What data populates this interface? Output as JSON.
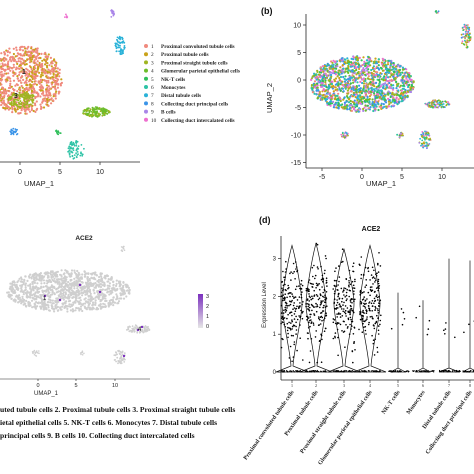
{
  "colors": {
    "cluster": [
      "#f08a7e",
      "#c9a21a",
      "#9fb521",
      "#6cbc2a",
      "#2fbf5a",
      "#2ec3a6",
      "#2ab2d8",
      "#3b94e8",
      "#a985e8",
      "#ee6fcf"
    ],
    "feature_low": "#cfcfcf",
    "feature_high": "#7b2fbe",
    "violin_outline": "#111111",
    "points": "#000000"
  },
  "chart_data": [
    {
      "panel": "a",
      "type": "scatter",
      "title": "",
      "xlabel": "UMAP_1",
      "ylabel": "",
      "x_ticks": [
        "0",
        "5",
        "10"
      ],
      "legend_position": "right",
      "legend": [
        {
          "num": "1",
          "label": "Proximal convoluted tubule cells"
        },
        {
          "num": "2",
          "label": "Proximal tubule cells"
        },
        {
          "num": "3",
          "label": "Proximal straight tubule cells"
        },
        {
          "num": "4",
          "label": "Glomerular parietal epithelial cells"
        },
        {
          "num": "5",
          "label": "NK-T cells"
        },
        {
          "num": "6",
          "label": "Monocytes"
        },
        {
          "num": "7",
          "label": "Distal tubule cells"
        },
        {
          "num": "8",
          "label": "Collecting duct principal cells"
        },
        {
          "num": "9",
          "label": "B cells"
        },
        {
          "num": "10",
          "label": "Collecting duct intercalated cells"
        }
      ],
      "cluster_labels": [
        "1",
        "3"
      ]
    },
    {
      "panel": "b",
      "type": "scatter",
      "title": "",
      "xlabel": "UMAP_1",
      "ylabel": "UMAP_2",
      "x_ticks": [
        "-5",
        "0",
        "5",
        "10"
      ],
      "y_ticks": [
        "10",
        "5",
        "0",
        "-5",
        "-10",
        "-15"
      ],
      "xlim": [
        -7,
        14
      ],
      "ylim": [
        -16,
        12
      ]
    },
    {
      "panel": "c",
      "type": "scatter",
      "title": "ACE2",
      "xlabel": "UMAP_1",
      "ylabel": "",
      "x_ticks": [
        "0",
        "5",
        "10"
      ],
      "colorbar_ticks": [
        "3",
        "2",
        "1",
        "0"
      ],
      "cluster_labels": [
        "1",
        "4"
      ]
    },
    {
      "panel": "d",
      "type": "violin",
      "title": "ACE2",
      "ylabel": "Expression Level",
      "y_ticks": [
        "0",
        "1",
        "2",
        "3"
      ],
      "ylim": [
        0,
        3.6
      ],
      "categories": [
        "Proximal convoluted tubule cells",
        "Proximal tubule cells",
        "Proximal straight tubule cells",
        "Glomerular parietal epithelial cells",
        "NK-T cells",
        "Monocytes",
        "Distal tubule cells",
        "Collecting duct principal cells"
      ],
      "category_numbers": [
        "1",
        "2",
        "3",
        "4",
        "5",
        "6",
        "7",
        "8"
      ],
      "max_values": [
        3.35,
        3.4,
        3.25,
        3.35,
        2.1,
        1.9,
        3.0,
        2.95
      ]
    }
  ],
  "panel_labels": {
    "b": "(b)",
    "d": "(d)"
  },
  "caption": {
    "line1": "uted tubule cells  2. Proximal tubule cells 3. Proximal straight tubule cells",
    "line2": "ietal epithelial cells  5. NK-T cells  6. Monocytes  7. Distal tubule cells",
    "line3": "principal cells  9. B cells  10. Collecting duct intercalated cells"
  }
}
